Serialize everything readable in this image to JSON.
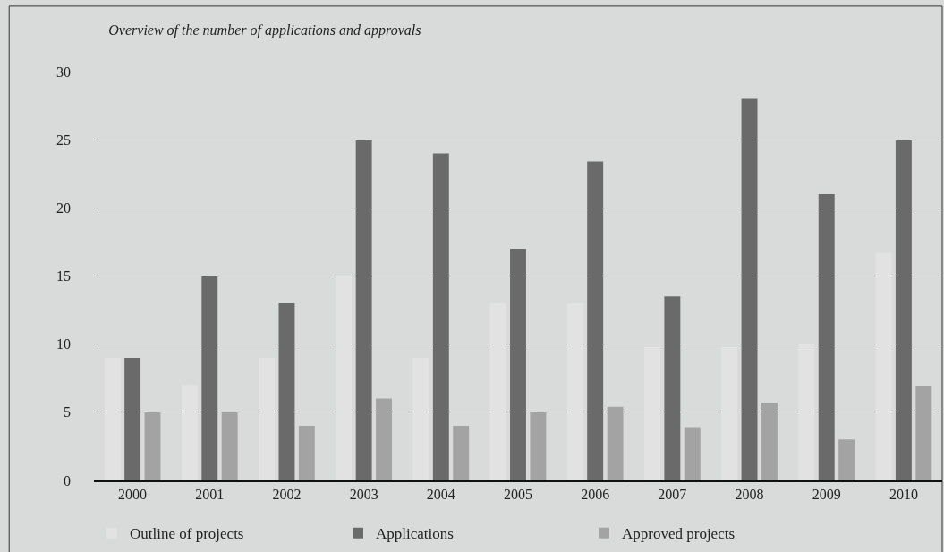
{
  "chart_data": {
    "type": "bar",
    "title": "Overview of the number of applications and approvals",
    "categories": [
      "2000",
      "2001",
      "2002",
      "2003",
      "2004",
      "2005",
      "2006",
      "2007",
      "2008",
      "2009",
      "2010"
    ],
    "series": [
      {
        "name": "Outline of projects",
        "color": "#e2e2e2",
        "values": [
          9,
          7,
          9,
          15,
          9,
          13,
          13,
          9.8,
          9.8,
          10,
          16.7
        ]
      },
      {
        "name": "Applications",
        "color": "#6a6a6a",
        "values": [
          9,
          15,
          13,
          25,
          24,
          17,
          23.4,
          13.5,
          28,
          21,
          25
        ]
      },
      {
        "name": "Approved projects",
        "color": "#a3a3a3",
        "values": [
          5,
          5,
          4,
          6,
          4,
          5,
          5.4,
          3.9,
          5.7,
          3,
          6.9
        ]
      }
    ],
    "ylim": [
      0,
      30
    ],
    "yticks": [
      0,
      5,
      10,
      15,
      20,
      25,
      30
    ],
    "grid": "y",
    "legend": "bottom"
  }
}
